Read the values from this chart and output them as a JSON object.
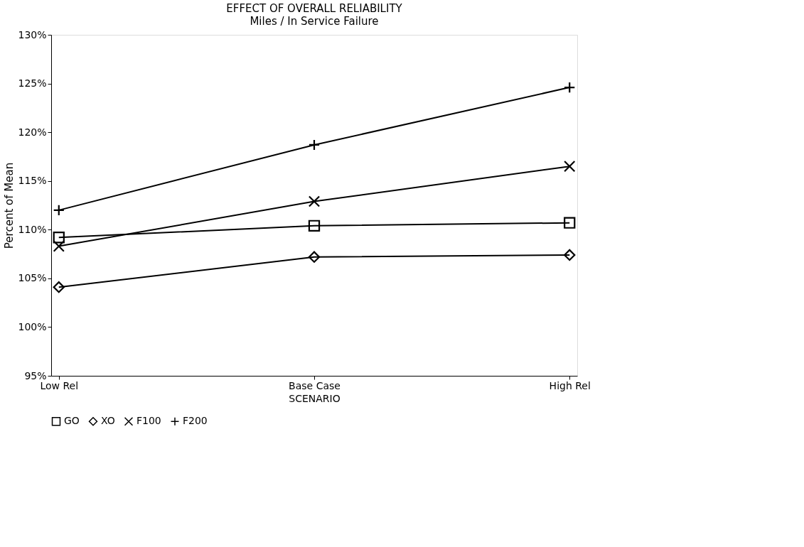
{
  "chart_data": {
    "type": "line",
    "title": "EFFECT OF OVERALL RELIABILITY",
    "subtitle": "Miles / In Service Failure",
    "xlabel": "SCENARIO",
    "ylabel": "Percent of Mean",
    "categories": [
      "Low Rel",
      "Base Case",
      "High Rel"
    ],
    "series": [
      {
        "name": "GO",
        "color": "#000000",
        "marker": "square",
        "values": [
          109.2,
          110.4,
          110.7
        ]
      },
      {
        "name": "XO",
        "color": "#000000",
        "marker": "diamond",
        "values": [
          104.1,
          107.2,
          107.4
        ]
      },
      {
        "name": "F100",
        "color": "#000000",
        "marker": "cross",
        "values": [
          108.3,
          112.9,
          116.5
        ]
      },
      {
        "name": "F200",
        "color": "#000000",
        "marker": "plus",
        "values": [
          112.0,
          118.7,
          124.6
        ]
      }
    ],
    "ylim": [
      95,
      130
    ],
    "yticks": [
      {
        "value": 95,
        "label": "95%"
      },
      {
        "value": 100,
        "label": "100%"
      },
      {
        "value": 105,
        "label": "105%"
      },
      {
        "value": 110,
        "label": "110%"
      },
      {
        "value": 115,
        "label": "115%"
      },
      {
        "value": 120,
        "label": "120%"
      },
      {
        "value": 125,
        "label": "125%"
      },
      {
        "value": 130,
        "label": "130%"
      }
    ],
    "grid": false,
    "legend": "bottom",
    "line_style": "solid"
  }
}
